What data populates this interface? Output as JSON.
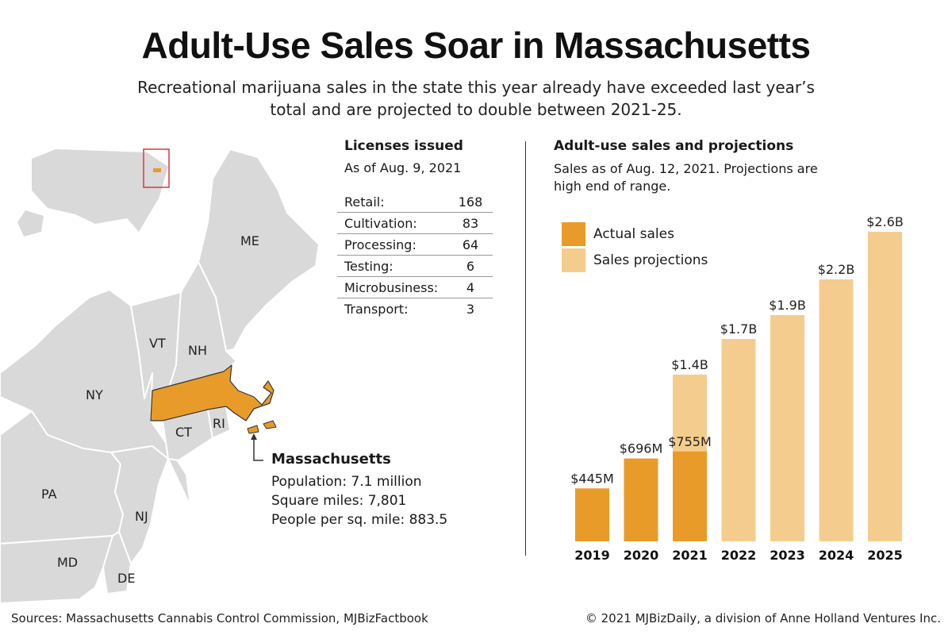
{
  "header": {
    "title": "Adult-Use Sales Soar in Massachusetts",
    "subtitle": "Recreational marijuana sales in the state this year already have exceeded last year’s total and are projected to double between 2021-25."
  },
  "map": {
    "state_labels": [
      "ME",
      "VT",
      "NH",
      "NY",
      "CT",
      "RI",
      "PA",
      "NJ",
      "MD",
      "DE"
    ],
    "colors": {
      "state": "#d9d9d9",
      "highlight": "#e99b2a",
      "border": "#ffffff",
      "inset_box": "#d9383e"
    },
    "callout": {
      "name": "Massachusetts",
      "population": "Population: 7.1 million",
      "square_miles": "Square miles: 7,801",
      "density": "People per sq. mile: 883.5"
    }
  },
  "licenses": {
    "heading": "Licenses issued",
    "as_of": "As of Aug. 9, 2021",
    "rows": [
      {
        "label": "Retail:",
        "value": "168"
      },
      {
        "label": "Cultivation:",
        "value": "83"
      },
      {
        "label": "Processing:",
        "value": "64"
      },
      {
        "label": "Testing:",
        "value": "6"
      },
      {
        "label": "Microbusiness:",
        "value": "4"
      },
      {
        "label": "Transport:",
        "value": "3"
      }
    ]
  },
  "sales": {
    "heading": "Adult-use sales and projections",
    "note": "Sales as of Aug. 12, 2021. Projections are high end of range.",
    "legend": [
      {
        "label": "Actual sales",
        "color": "#e99b2a"
      },
      {
        "label": "Sales projections",
        "color": "#f4cd8e"
      }
    ]
  },
  "chart_data": {
    "type": "bar",
    "categories": [
      "2019",
      "2020",
      "2021",
      "2022",
      "2023",
      "2024",
      "2025"
    ],
    "series": [
      {
        "name": "Actual sales",
        "values": [
          445,
          696,
          755,
          null,
          null,
          null,
          null
        ],
        "labels": [
          "$445M",
          "$696M",
          "$755M",
          "",
          "",
          "",
          ""
        ]
      },
      {
        "name": "Sales projections",
        "values": [
          null,
          null,
          1400,
          1700,
          1900,
          2200,
          2600
        ],
        "labels": [
          "",
          "",
          "$1.4B",
          "$1.7B",
          "$1.9B",
          "$2.2B",
          "$2.6B"
        ]
      }
    ],
    "ylabel": "",
    "ylim": [
      0,
      2600
    ],
    "grid": false,
    "legend": "top-left"
  },
  "footer": {
    "sources": "Sources: Massachusetts Cannabis Control Commission, MJBizFactbook",
    "copyright": "© 2021 MJBizDaily, a division of Anne Holland Ventures Inc."
  }
}
